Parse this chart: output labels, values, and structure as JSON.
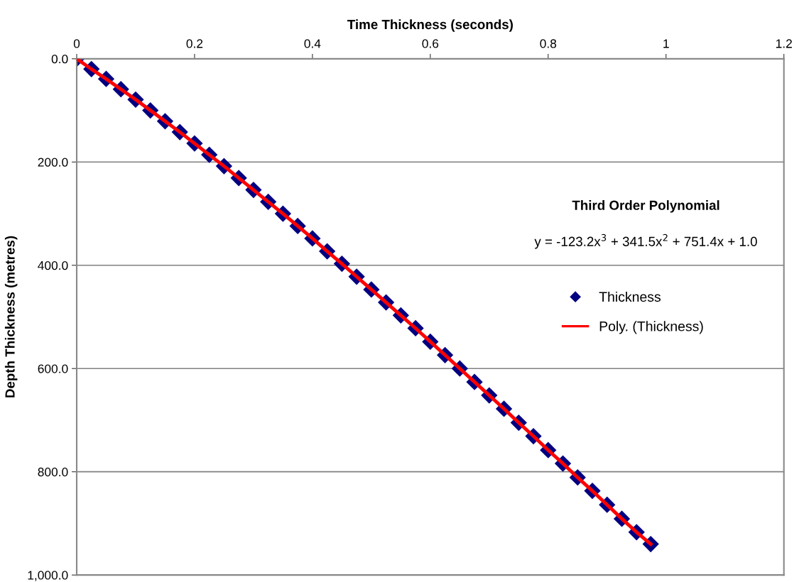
{
  "chart_data": {
    "type": "scatter",
    "xlabel": "Time Thickness (seconds)",
    "ylabel": "Depth Thickness (metres)",
    "xlim": [
      0,
      1.2
    ],
    "xticks": [
      0,
      0.2,
      0.4,
      0.6,
      0.8,
      1,
      1.2
    ],
    "ylim": [
      1000,
      0
    ],
    "yticks": [
      {
        "value": 0,
        "label": "0.0"
      },
      {
        "value": 200,
        "label": "200.0"
      },
      {
        "value": 400,
        "label": "400.0"
      },
      {
        "value": 600,
        "label": "600.0"
      },
      {
        "value": 800,
        "label": "800.0"
      },
      {
        "value": 1000,
        "label": "1,000.0"
      }
    ],
    "grid": "y",
    "legend": "right",
    "x": [
      0,
      0.025,
      0.05,
      0.075,
      0.1,
      0.125,
      0.15,
      0.175,
      0.2,
      0.225,
      0.25,
      0.275,
      0.3,
      0.325,
      0.35,
      0.375,
      0.4,
      0.425,
      0.45,
      0.475,
      0.5,
      0.525,
      0.55,
      0.575,
      0.6,
      0.625,
      0.65,
      0.675,
      0.7,
      0.725,
      0.75,
      0.775,
      0.8,
      0.825,
      0.85,
      0.875,
      0.9,
      0.925,
      0.95,
      0.974
    ],
    "series": [
      {
        "name": "Thickness",
        "color": "#000080",
        "marker": "diamond",
        "values": [
          0,
          20,
          39,
          59,
          79,
          100,
          121,
          142,
          164,
          186,
          208,
          231,
          254,
          277,
          300,
          324,
          348,
          373,
          397,
          422,
          447,
          472,
          497,
          522,
          548,
          574,
          600,
          626,
          652,
          678,
          705,
          731,
          758,
          784,
          811,
          837,
          864,
          891,
          917,
          940
        ]
      },
      {
        "name": "Poly. (Thickness)",
        "type": "line",
        "color": "#ff0000",
        "marker": "none",
        "line_style": "solid",
        "values": [
          0,
          20,
          39,
          59,
          79,
          100,
          121,
          142,
          164,
          186,
          208,
          231,
          254,
          277,
          300,
          324,
          348,
          373,
          397,
          422,
          447,
          472,
          497,
          522,
          548,
          574,
          600,
          626,
          652,
          678,
          705,
          731,
          758,
          784,
          811,
          837,
          864,
          891,
          917,
          940
        ]
      }
    ],
    "annotations": [
      "Third Order Polynomial",
      "y = -123.2x$^{3}$ + 341.5x$^{2}$ + 751.4x + 1.0"
    ]
  }
}
